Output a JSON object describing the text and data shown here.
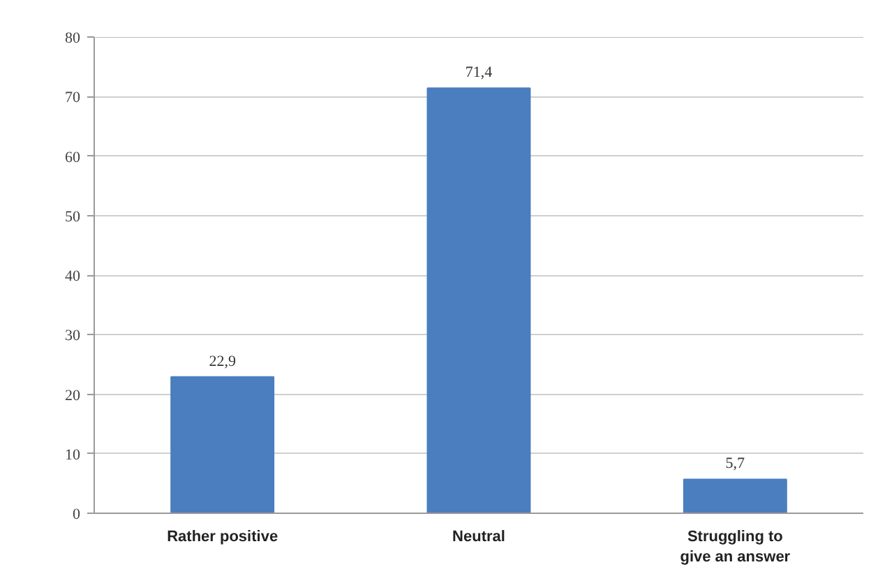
{
  "chart_data": {
    "type": "bar",
    "categories": [
      "Rather positive",
      "Neutral",
      "Struggling to give an answer"
    ],
    "values": [
      22.9,
      71.4,
      5.7
    ],
    "value_labels": [
      "22,9",
      "71,4",
      "5,7"
    ],
    "color": "#4a7ebf",
    "ylim": [
      0,
      80
    ],
    "yticks": [
      0,
      10,
      20,
      30,
      40,
      50,
      60,
      70,
      80
    ],
    "grid": "y"
  }
}
